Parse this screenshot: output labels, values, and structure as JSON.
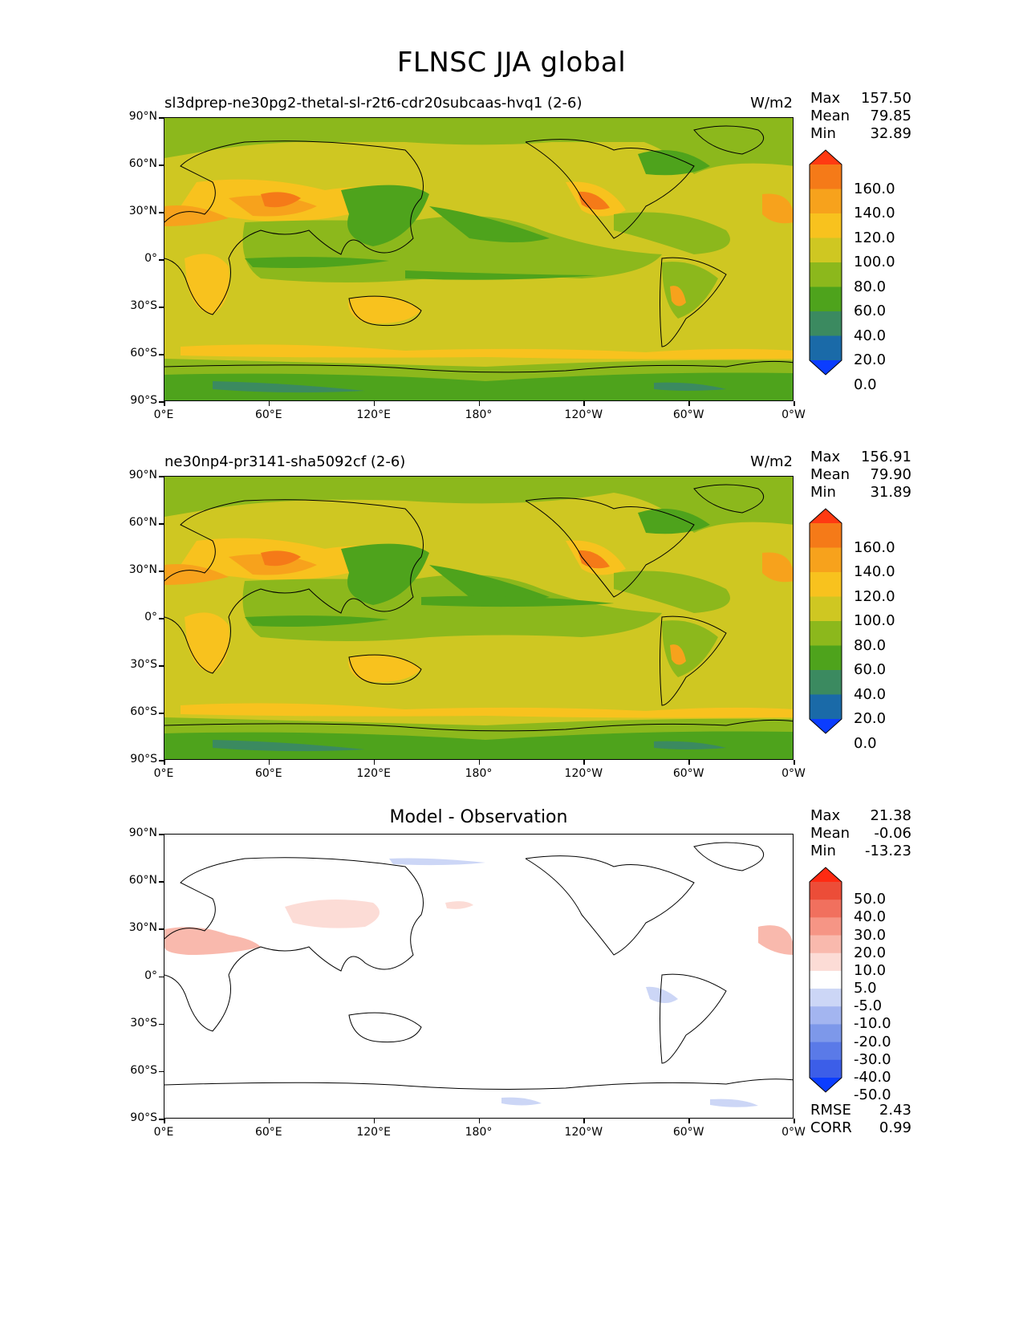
{
  "title": "FLNSC JJA global",
  "lat_labels": [
    "90°N",
    "60°N",
    "30°N",
    "0°",
    "30°S",
    "60°S",
    "90°S"
  ],
  "lon_labels": [
    "0°E",
    "60°E",
    "120°E",
    "180°",
    "120°W",
    "60°W",
    "0°W"
  ],
  "panels": [
    {
      "left_title": "sl3dprep-ne30pg2-thetal-sl-r2t6-cdr20subcaas-hvq1 (2-6)",
      "units": "W/m2",
      "stats": [
        [
          "Max",
          "157.50"
        ],
        [
          "Mean",
          "79.85"
        ],
        [
          "Min",
          "32.89"
        ]
      ],
      "cbar_labels": [
        "160.0",
        "140.0",
        "120.0",
        "100.0",
        "80.0",
        "60.0",
        "40.0",
        "20.0",
        "0.0"
      ]
    },
    {
      "left_title": "ne30np4-pr3141-sha5092cf (2-6)",
      "units": "W/m2",
      "stats": [
        [
          "Max",
          "156.91"
        ],
        [
          "Mean",
          "79.90"
        ],
        [
          "Min",
          "31.89"
        ]
      ],
      "cbar_labels": [
        "160.0",
        "140.0",
        "120.0",
        "100.0",
        "80.0",
        "60.0",
        "40.0",
        "20.0",
        "0.0"
      ]
    },
    {
      "center_title": "Model - Observation",
      "stats": [
        [
          "Max",
          "21.38"
        ],
        [
          "Mean",
          "-0.06"
        ],
        [
          "Min",
          "-13.23"
        ]
      ],
      "cbar_labels": [
        "50.0",
        "40.0",
        "30.0",
        "20.0",
        "10.0",
        "5.0",
        "-5.0",
        "-10.0",
        "-20.0",
        "-30.0",
        "-40.0",
        "-50.0"
      ],
      "bottom_stats": [
        [
          "RMSE",
          "2.43"
        ],
        [
          "CORR",
          "0.99"
        ]
      ]
    }
  ],
  "colors": {
    "abs_scale": [
      "#0b3dff",
      "#1a6aa8",
      "#3b8a60",
      "#4ea31c",
      "#8cb81c",
      "#cfc722",
      "#f8c21e",
      "#f7a21c",
      "#f57a18",
      "#ff3a12"
    ],
    "diff_scale": [
      "#0b3dff",
      "#3c5ee8",
      "#5a7ae8",
      "#7d98ea",
      "#a3b5f0",
      "#ccd6f6",
      "#ffffff",
      "#fcdcd6",
      "#f9b9ad",
      "#f69585",
      "#f1705e",
      "#ec4d38",
      "#ff2a12"
    ]
  }
}
